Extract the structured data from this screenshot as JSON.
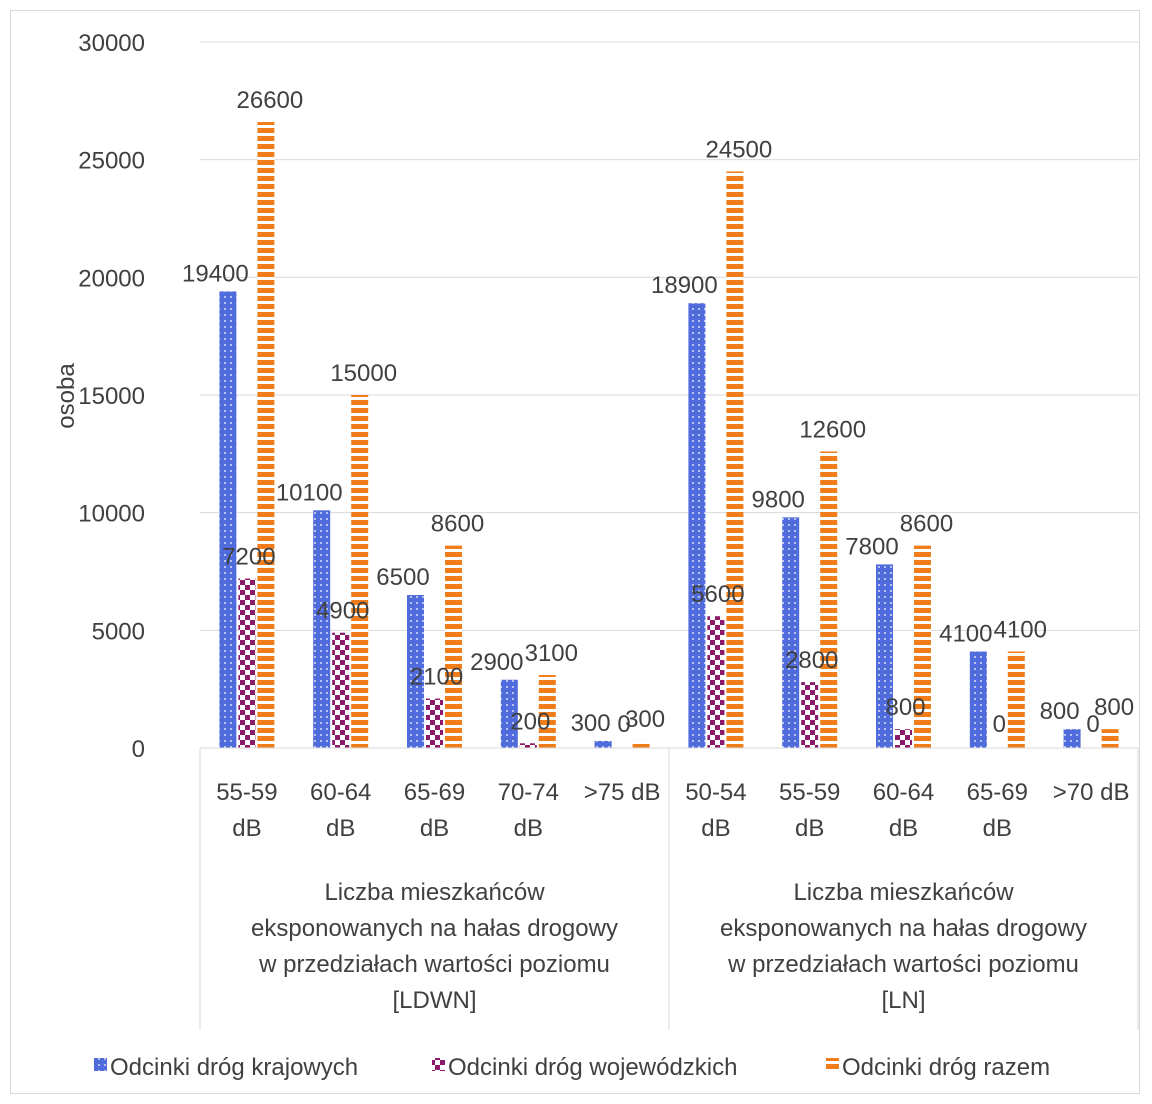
{
  "chart_data": {
    "type": "bar",
    "ylabel": "osoba",
    "ylim": [
      0,
      30000
    ],
    "yticks": [
      0,
      5000,
      10000,
      15000,
      20000,
      25000,
      30000
    ],
    "grid": true,
    "legend_position": "bottom",
    "groups": [
      {
        "label_lines": [
          "Liczba mieszkańców",
          "eksponowanych na hałas drogowy",
          "w przedziałach wartości poziomu",
          "[LDWN]"
        ],
        "categories": [
          {
            "lines": [
              "55-59",
              "dB"
            ]
          },
          {
            "lines": [
              "60-64",
              "dB"
            ]
          },
          {
            "lines": [
              "65-69",
              "dB"
            ]
          },
          {
            "lines": [
              "70-74",
              "dB"
            ]
          },
          {
            "lines": [
              ">75 dB"
            ]
          }
        ]
      },
      {
        "label_lines": [
          "Liczba mieszkańców",
          "eksponowanych na hałas drogowy",
          "w przedziałach wartości poziomu",
          "[LN]"
        ],
        "categories": [
          {
            "lines": [
              "50-54",
              "dB"
            ]
          },
          {
            "lines": [
              "55-59",
              "dB"
            ]
          },
          {
            "lines": [
              "60-64",
              "dB"
            ]
          },
          {
            "lines": [
              "65-69",
              "dB"
            ]
          },
          {
            "lines": [
              ">70 dB"
            ]
          }
        ]
      }
    ],
    "series": [
      {
        "name": "Odcinki dróg krajowych",
        "color": "#4f6bdc",
        "pattern": "dotted",
        "values": [
          19400,
          10100,
          6500,
          2900,
          300,
          18900,
          9800,
          7800,
          4100,
          800
        ],
        "labels": [
          "19400",
          "10100",
          "6500",
          "2900",
          "300",
          "18900",
          "9800",
          "7800",
          "4100",
          "800"
        ]
      },
      {
        "name": "Odcinki dróg wojewódzkich",
        "color": "#8b1a6b",
        "pattern": "checker",
        "values": [
          7200,
          4900,
          2100,
          200,
          0,
          5600,
          2800,
          800,
          0,
          0
        ],
        "labels": [
          "7200",
          "4900",
          "2100",
          "200",
          "0",
          "5600",
          "2800",
          "800",
          "0",
          "0"
        ]
      },
      {
        "name": "Odcinki dróg razem",
        "color": "#f07d1a",
        "pattern": "horizontal-stripes",
        "values": [
          26600,
          15000,
          8600,
          3100,
          300,
          24500,
          12600,
          8600,
          4100,
          800
        ],
        "labels": [
          "26600",
          "15000",
          "8600",
          "3100",
          "300",
          "24500",
          "12600",
          "8600",
          "4100",
          "800"
        ]
      }
    ]
  }
}
